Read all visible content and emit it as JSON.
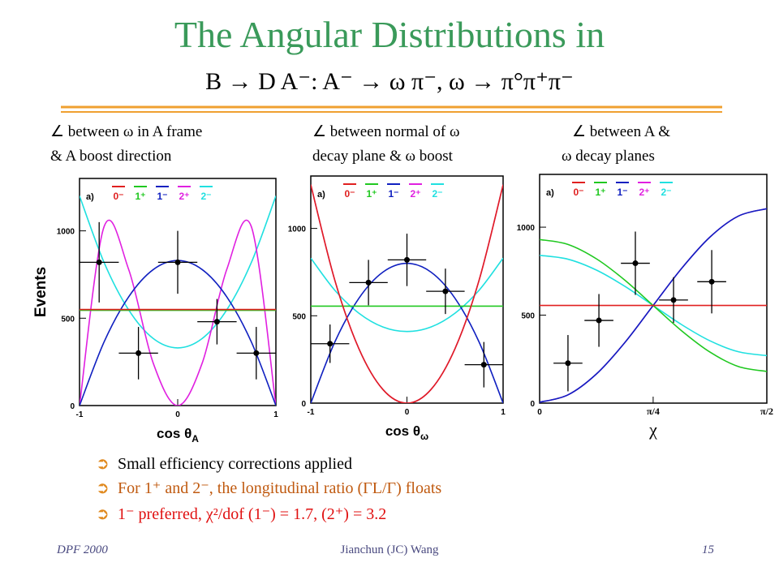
{
  "title": "The Angular Distributions in",
  "subtitle": "B → D A⁻:  A⁻ → ω π⁻,   ω → π°π⁺π⁻",
  "captions": [
    [
      "∠ between ω in A frame",
      "& A boost direction"
    ],
    [
      "∠ between normal of ω",
      "decay plane & ω boost"
    ],
    [
      "∠ between A &",
      "ω decay planes"
    ]
  ],
  "bullets": [
    "Small efficiency corrections applied",
    "For 1⁺ and 2⁻, the longitudinal ratio (ΓL/Γ) floats",
    "1⁻ preferred, χ²/dof (1⁻) = 1.7,   (2⁺) = 3.2"
  ],
  "footer": {
    "left": "DPF 2000",
    "center": "Jianchun (JC) Wang",
    "right": "15"
  },
  "chart_data": [
    {
      "type": "line",
      "panel": "a)",
      "ylabel": "Events",
      "xlabel": "cos θ",
      "xlabel_sub": "A",
      "xlim": [
        -1,
        1
      ],
      "ylim": [
        0,
        1300
      ],
      "xticks": [
        -1,
        0,
        1
      ],
      "yticks": [
        0,
        500,
        1000
      ],
      "x": [
        -1,
        -0.75,
        -0.5,
        -0.25,
        0,
        0.25,
        0.5,
        0.75,
        1
      ],
      "series": [
        {
          "name": "0⁻",
          "color": "#e02020",
          "values": [
            550,
            550,
            550,
            550,
            550,
            550,
            550,
            550,
            550
          ]
        },
        {
          "name": "1⁺",
          "color": "#20c820",
          "values": [
            545,
            545,
            545,
            545,
            545,
            545,
            545,
            545,
            545
          ]
        },
        {
          "name": "1⁻",
          "color": "#1020c0",
          "values": [
            0,
            364,
            622,
            778,
            830,
            778,
            622,
            364,
            0
          ]
        },
        {
          "name": "2⁺",
          "color": "#e020e0",
          "values": [
            0,
            1024,
            780,
            244,
            0,
            244,
            780,
            1024,
            0
          ]
        },
        {
          "name": "2⁻",
          "color": "#20e0e0",
          "values": [
            1200,
            819,
            548,
            384,
            330,
            384,
            548,
            819,
            1200
          ]
        }
      ],
      "points": {
        "x": [
          -0.8,
          -0.4,
          0,
          0.4,
          0.8
        ],
        "values": [
          820,
          300,
          820,
          480,
          300
        ],
        "xerr": [
          0.2,
          0.2,
          0.2,
          0.2,
          0.2
        ],
        "yerr": [
          230,
          150,
          180,
          130,
          150
        ]
      }
    },
    {
      "type": "line",
      "panel": "a)",
      "xlabel": "cos θ",
      "xlabel_sub": "ω",
      "xlim": [
        -1,
        1
      ],
      "ylim": [
        0,
        1300
      ],
      "xticks": [
        -1,
        0,
        1
      ],
      "yticks": [
        0,
        500,
        1000
      ],
      "x": [
        -1,
        -0.75,
        -0.5,
        -0.25,
        0,
        0.25,
        0.5,
        0.75,
        1
      ],
      "series": [
        {
          "name": "0⁻",
          "color": "#e02020",
          "values": [
            1250,
            703,
            312,
            78,
            0,
            78,
            312,
            703,
            1250
          ]
        },
        {
          "name": "1⁺",
          "color": "#20c820",
          "values": [
            555,
            555,
            555,
            555,
            555,
            555,
            555,
            555,
            555
          ]
        },
        {
          "name": "1⁻",
          "color": "#1020c0",
          "values": [
            0,
            350,
            600,
            750,
            800,
            750,
            600,
            350,
            0
          ]
        },
        {
          "name": "2⁺",
          "color": "#e020e0",
          "values": [
            1250,
            703,
            312,
            78,
            0,
            78,
            312,
            703,
            1250
          ]
        },
        {
          "name": "2⁻",
          "color": "#20e0e0",
          "values": [
            830,
            646,
            515,
            436,
            410,
            436,
            515,
            646,
            830
          ]
        }
      ],
      "points": {
        "x": [
          -0.8,
          -0.4,
          0,
          0.4,
          0.8
        ],
        "values": [
          340,
          690,
          820,
          640,
          220
        ],
        "xerr": [
          0.2,
          0.2,
          0.2,
          0.2,
          0.2
        ],
        "yerr": [
          110,
          130,
          150,
          130,
          130
        ]
      }
    },
    {
      "type": "line",
      "panel": "a)",
      "xlabel": "χ",
      "xlim": [
        0,
        1.571
      ],
      "ylim": [
        0,
        1300
      ],
      "xticks": [
        0,
        {
          "value": 0.785,
          "label": "π/4"
        },
        {
          "value": 1.571,
          "label": "π/2"
        }
      ],
      "yticks": [
        0,
        500,
        1000
      ],
      "x": [
        0,
        0.196,
        0.393,
        0.589,
        0.785,
        0.982,
        1.178,
        1.374,
        1.571
      ],
      "series": [
        {
          "name": "0⁻",
          "color": "#e02020",
          "values": [
            555,
            555,
            555,
            555,
            555,
            555,
            555,
            555,
            555
          ]
        },
        {
          "name": "1⁺",
          "color": "#20c820",
          "values": [
            930,
            902,
            820,
            699,
            555,
            411,
            290,
            208,
            180
          ]
        },
        {
          "name": "1⁻",
          "color": "#1020c0",
          "values": [
            5,
            47,
            166,
            344,
            555,
            766,
            944,
            1063,
            1105
          ]
        },
        {
          "name": "2⁺",
          "color": "#e020e0",
          "values": [
            5,
            47,
            166,
            344,
            555,
            766,
            944,
            1063,
            1105
          ]
        },
        {
          "name": "2⁻",
          "color": "#20e0e0",
          "values": [
            840,
            818,
            756,
            664,
            555,
            446,
            354,
            292,
            270
          ]
        }
      ],
      "points": {
        "x": [
          0.196,
          0.41,
          0.662,
          0.926,
          1.19
        ],
        "values": [
          227,
          470,
          795,
          586,
          690
        ],
        "xerr": [
          0.1,
          0.1,
          0.1,
          0.1,
          0.1
        ],
        "yerr": [
          160,
          150,
          180,
          130,
          180
        ]
      }
    }
  ]
}
